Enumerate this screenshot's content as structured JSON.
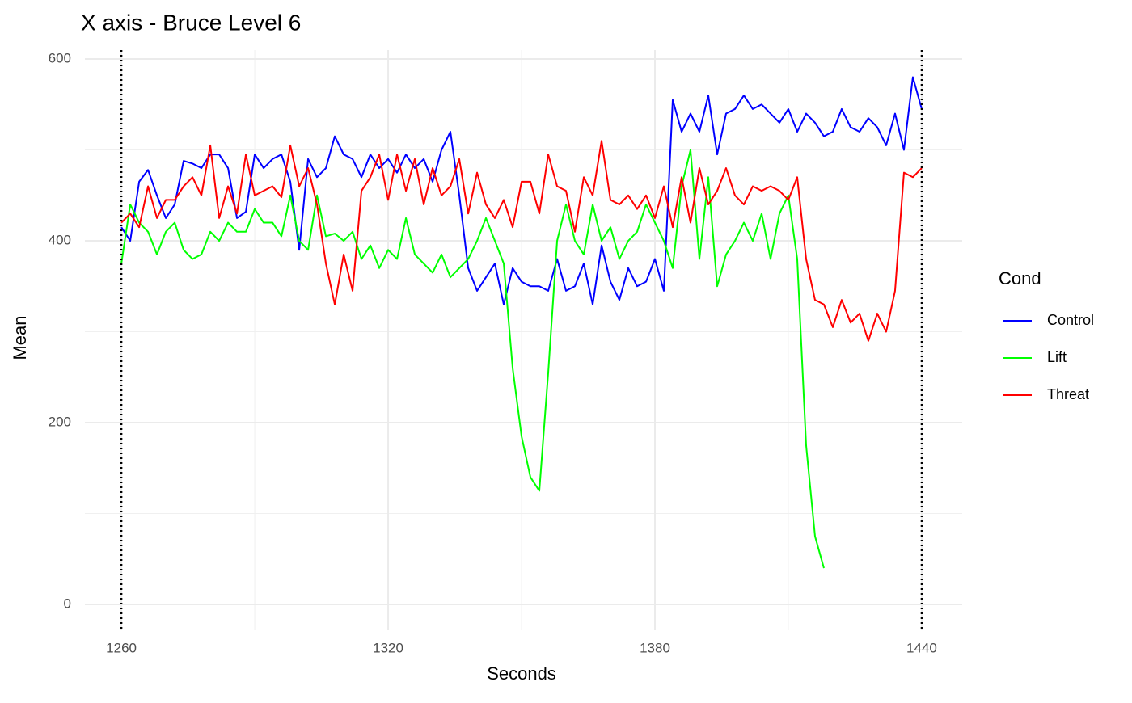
{
  "chart_data": {
    "type": "line",
    "title": "X axis - Bruce Level 6",
    "x_label": "Seconds",
    "y_label": "Mean",
    "legend_title": "Cond",
    "legend": "right",
    "grid": true,
    "xlim": [
      1251.8,
      1449.1
    ],
    "ylim": [
      -28.4,
      609.8
    ],
    "xticks": [
      1260,
      1320,
      1380,
      1440
    ],
    "yticks": [
      0,
      200,
      400,
      600
    ],
    "xminor": [
      1290,
      1350,
      1410
    ],
    "yminor": [
      100,
      300,
      500
    ],
    "vlines": [
      1260,
      1440
    ],
    "x": [
      1260,
      1262,
      1264,
      1266,
      1268,
      1270,
      1272,
      1274,
      1276,
      1278,
      1280,
      1282,
      1284,
      1286,
      1288,
      1290,
      1292,
      1294,
      1296,
      1298,
      1300,
      1302,
      1304,
      1306,
      1308,
      1310,
      1312,
      1314,
      1316,
      1318,
      1320,
      1322,
      1324,
      1326,
      1328,
      1330,
      1332,
      1334,
      1336,
      1338,
      1340,
      1342,
      1344,
      1346,
      1348,
      1350,
      1352,
      1354,
      1356,
      1358,
      1360,
      1362,
      1364,
      1366,
      1368,
      1370,
      1372,
      1374,
      1376,
      1378,
      1380,
      1382,
      1384,
      1386,
      1388,
      1390,
      1392,
      1394,
      1396,
      1398,
      1400,
      1402,
      1404,
      1406,
      1408,
      1410,
      1412,
      1414,
      1416,
      1418,
      1420,
      1422,
      1424,
      1426,
      1428,
      1430,
      1432,
      1434,
      1436,
      1438,
      1440
    ],
    "series": [
      {
        "name": "Control",
        "color": "#0000ff",
        "values": [
          415,
          400,
          465,
          478,
          450,
          425,
          440,
          488,
          485,
          480,
          495,
          495,
          480,
          425,
          432,
          495,
          480,
          490,
          495,
          465,
          390,
          490,
          470,
          480,
          515,
          495,
          490,
          470,
          495,
          480,
          490,
          475,
          495,
          480,
          490,
          465,
          500,
          520,
          450,
          370,
          345,
          360,
          375,
          330,
          370,
          355,
          350,
          350,
          345,
          380,
          345,
          350,
          375,
          330,
          395,
          355,
          335,
          370,
          350,
          355,
          380,
          345,
          555,
          520,
          540,
          520,
          560,
          495,
          540,
          545,
          560,
          545,
          550,
          540,
          530,
          545,
          520,
          540,
          530,
          515,
          520,
          545,
          525,
          520,
          535,
          525,
          505,
          540,
          500,
          580,
          545
        ]
      },
      {
        "name": "Lift",
        "color": "#00ff00",
        "values": [
          375,
          440,
          420,
          410,
          385,
          410,
          420,
          390,
          380,
          385,
          410,
          400,
          420,
          410,
          410,
          435,
          420,
          420,
          405,
          450,
          400,
          390,
          450,
          405,
          408,
          400,
          410,
          380,
          395,
          370,
          390,
          380,
          425,
          385,
          375,
          365,
          385,
          360,
          370,
          380,
          400,
          425,
          400,
          375,
          260,
          185,
          140,
          125,
          255,
          400,
          440,
          400,
          385,
          440,
          400,
          415,
          380,
          400,
          410,
          440,
          420,
          400,
          370,
          460,
          500,
          380,
          470,
          350,
          385,
          400,
          420,
          400,
          430,
          380,
          430,
          450,
          380,
          175,
          75,
          40,
          null,
          null,
          null,
          null,
          null,
          null,
          null,
          null,
          null,
          null,
          null
        ]
      },
      {
        "name": "Threat",
        "color": "#ff0000",
        "values": [
          420,
          430,
          415,
          460,
          425,
          445,
          445,
          460,
          470,
          450,
          505,
          425,
          460,
          430,
          495,
          450,
          455,
          460,
          448,
          505,
          460,
          480,
          440,
          375,
          330,
          385,
          345,
          455,
          470,
          495,
          445,
          495,
          455,
          490,
          440,
          480,
          450,
          460,
          490,
          430,
          475,
          440,
          425,
          445,
          415,
          465,
          465,
          430,
          495,
          460,
          455,
          410,
          470,
          450,
          510,
          445,
          440,
          450,
          435,
          450,
          425,
          460,
          415,
          470,
          420,
          480,
          440,
          455,
          480,
          450,
          440,
          460,
          455,
          460,
          455,
          445,
          470,
          380,
          335,
          330,
          305,
          335,
          310,
          320,
          290,
          320,
          300,
          345,
          475,
          470,
          480
        ]
      }
    ]
  }
}
